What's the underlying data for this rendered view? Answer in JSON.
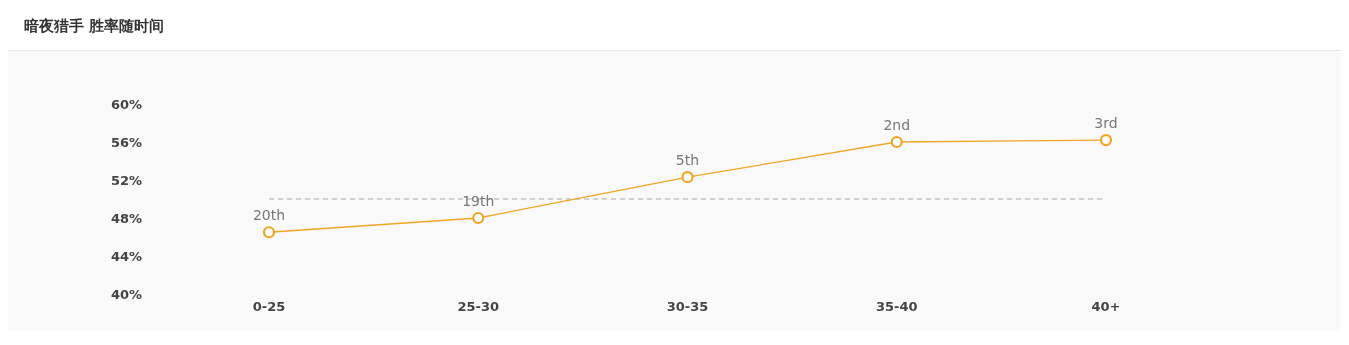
{
  "chart_data": {
    "type": "line",
    "title": "暗夜猎手 胜率随时间",
    "categories": [
      "0-25",
      "25-30",
      "30-35",
      "35-40",
      "40+"
    ],
    "series": [
      {
        "color": "#f0a623",
        "values": [
          46.5,
          48.0,
          52.3,
          56.0,
          56.2
        ]
      }
    ],
    "annotations": [
      {
        "text": "20th",
        "x": "0-25",
        "y": 46.5
      },
      {
        "text": "19th",
        "x": "25-30",
        "y": 48.0
      },
      {
        "text": "5th",
        "x": "30-35",
        "y": 52.3
      },
      {
        "text": "2nd",
        "x": "35-40",
        "y": 56.0
      },
      {
        "text": "3rd",
        "x": "40+",
        "y": 56.2
      }
    ],
    "ylim": [
      40,
      60
    ],
    "yticks": [
      {
        "value": 40,
        "label": "40%"
      },
      {
        "value": 44,
        "label": "44%"
      },
      {
        "value": 48,
        "label": "48%"
      },
      {
        "value": 52,
        "label": "52%"
      },
      {
        "value": 56,
        "label": "56%"
      },
      {
        "value": 60,
        "label": "60%"
      }
    ],
    "ref_lines": [
      {
        "axis": "y",
        "value": 50,
        "color": "#aaaaaa",
        "line_style": "dashed"
      }
    ],
    "marker": "circle",
    "line_style": "solid"
  }
}
